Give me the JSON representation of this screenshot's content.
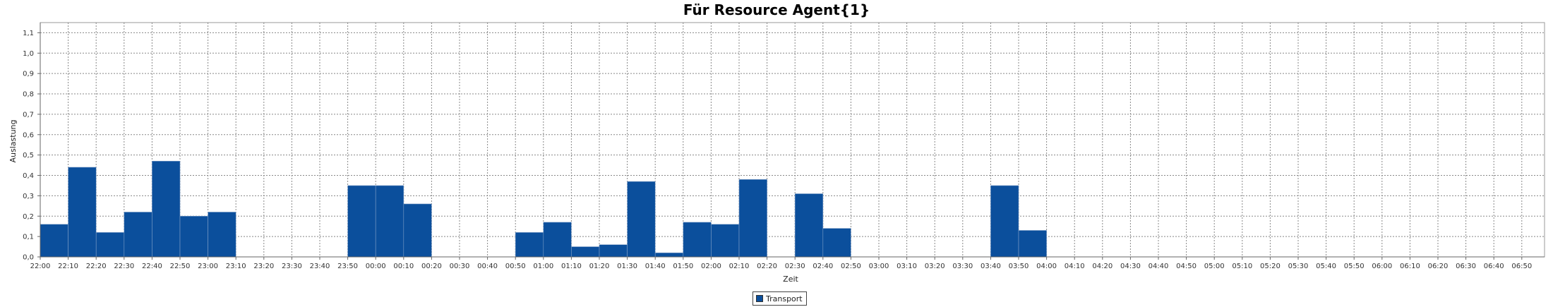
{
  "chart_data": {
    "type": "bar",
    "title": "Für Resource Agent{1}",
    "xlabel": "Zeit",
    "ylabel": "Auslastung",
    "ylim": [
      0,
      1.15
    ],
    "yticks": [
      "0,0",
      "0,1",
      "0,2",
      "0,3",
      "0,4",
      "0,5",
      "0,6",
      "0,7",
      "0,8",
      "0,9",
      "1,0",
      "1,1"
    ],
    "categories": [
      "22:00",
      "22:10",
      "22:20",
      "22:30",
      "22:40",
      "22:50",
      "23:00",
      "23:10",
      "23:20",
      "23:30",
      "23:40",
      "23:50",
      "00:00",
      "00:10",
      "00:20",
      "00:30",
      "00:40",
      "00:50",
      "01:00",
      "01:10",
      "01:20",
      "01:30",
      "01:40",
      "01:50",
      "02:00",
      "02:10",
      "02:20",
      "02:30",
      "02:40",
      "02:50",
      "03:00",
      "03:10",
      "03:20",
      "03:30",
      "03:40",
      "03:50",
      "04:00",
      "04:10",
      "04:20",
      "04:30",
      "04:40",
      "04:50",
      "05:00",
      "05:10",
      "05:20",
      "05:30",
      "05:40",
      "05:50",
      "06:00",
      "06:10",
      "06:20",
      "06:30",
      "06:40",
      "06:50"
    ],
    "grid": true,
    "legend_position": "bottom-center",
    "series": [
      {
        "name": "Transport",
        "color": "#0b4f9c",
        "values": [
          0.16,
          0.44,
          0.12,
          0.22,
          0.47,
          0.2,
          0.22,
          0,
          0,
          0,
          0,
          0.35,
          0.35,
          0.26,
          0,
          0,
          0,
          0.12,
          0.17,
          0.05,
          0.06,
          0.37,
          0.02,
          0.17,
          0.16,
          0.38,
          0,
          0.31,
          0.14,
          0,
          0,
          0,
          0,
          0,
          0.35,
          0.13,
          0,
          0,
          0,
          0,
          0,
          0,
          0,
          0,
          0,
          0,
          0,
          0,
          0,
          0,
          0,
          0,
          0,
          0
        ]
      }
    ]
  }
}
